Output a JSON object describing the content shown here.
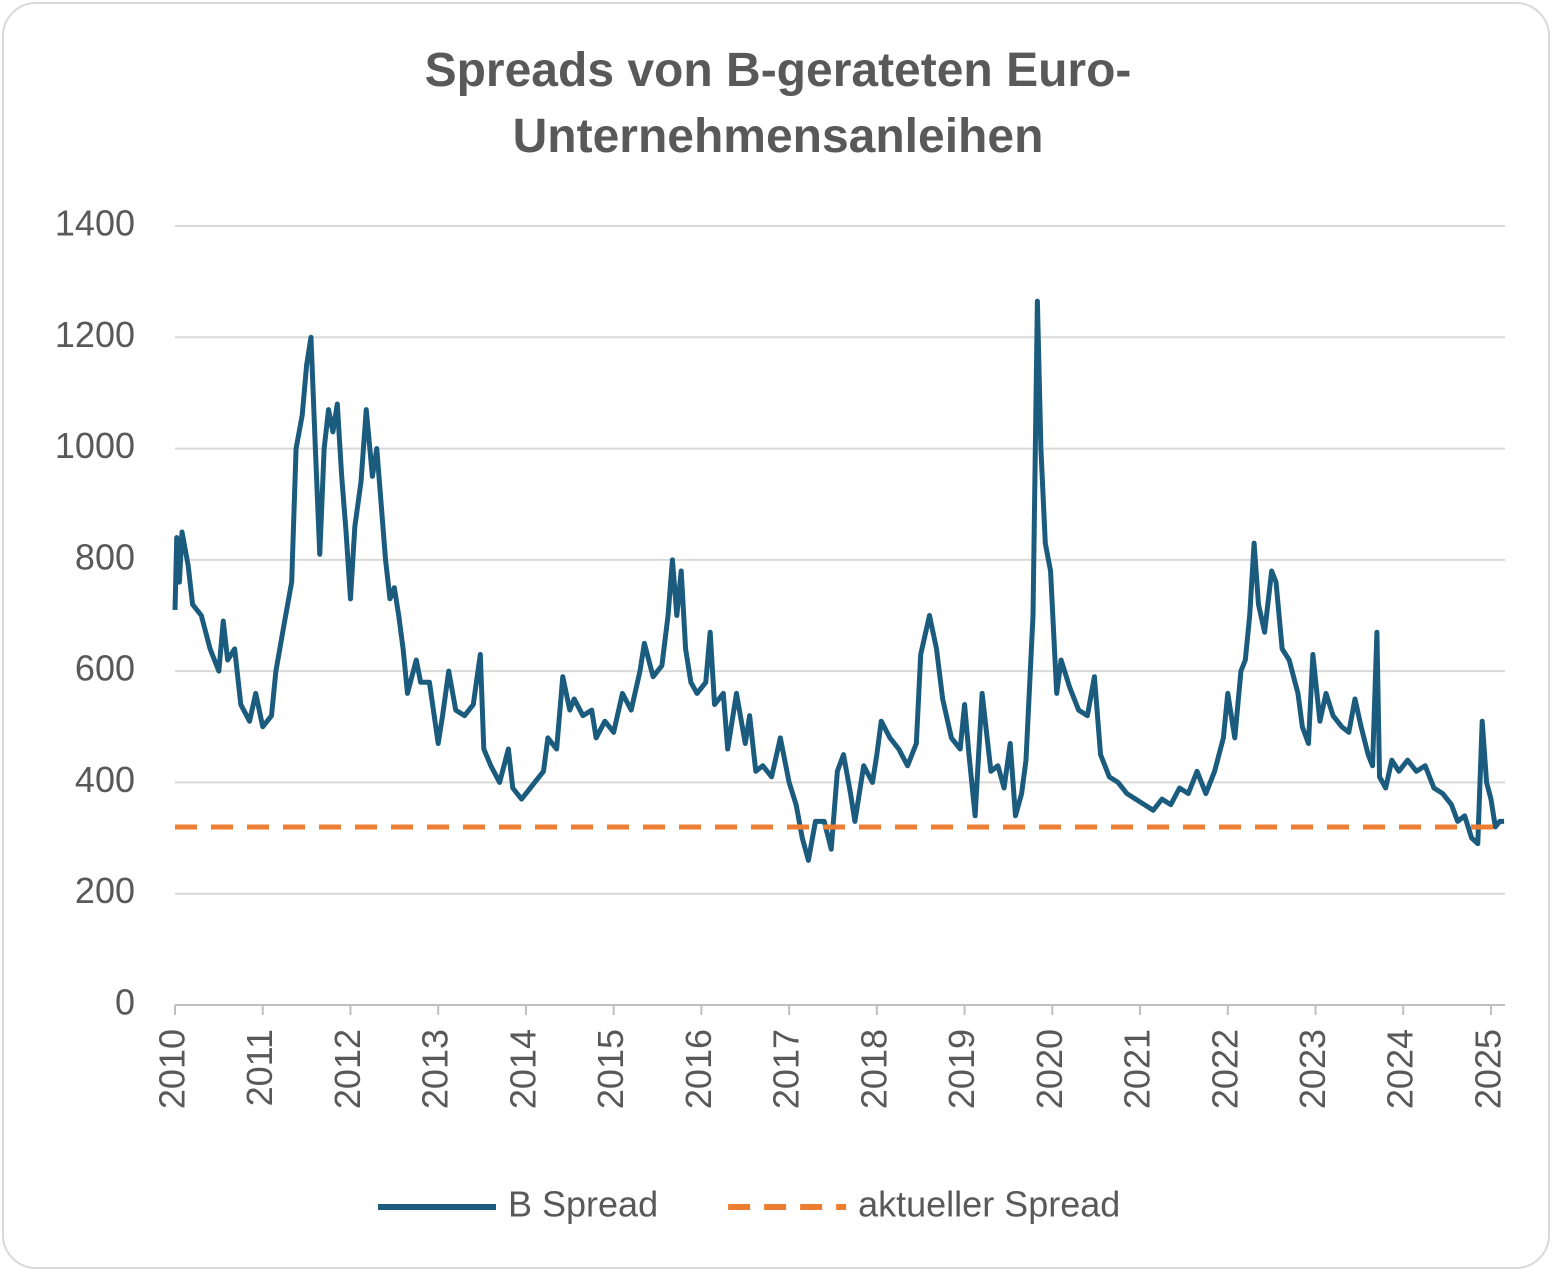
{
  "chart_data": {
    "type": "line",
    "title": "Spreads von B-gerateten Euro-Unternehmensanleihen",
    "xlim": [
      2010,
      2025.16
    ],
    "xticks": [
      2010,
      2011,
      2012,
      2013,
      2014,
      2015,
      2016,
      2017,
      2018,
      2019,
      2020,
      2021,
      2022,
      2023,
      2024,
      2025
    ],
    "ylim": [
      0,
      1400
    ],
    "yticks": [
      0,
      200,
      400,
      600,
      800,
      1000,
      1200,
      1400
    ],
    "grid": true,
    "legend": "bottom",
    "series": [
      {
        "name": "B Spread",
        "color": "#1b5c7e",
        "style": "solid",
        "x": [
          2010.0,
          2010.02,
          2010.05,
          2010.08,
          2010.15,
          2010.2,
          2010.3,
          2010.4,
          2010.5,
          2010.55,
          2010.6,
          2010.68,
          2010.75,
          2010.85,
          2010.92,
          2011.0,
          2011.1,
          2011.15,
          2011.25,
          2011.33,
          2011.38,
          2011.45,
          2011.5,
          2011.55,
          2011.6,
          2011.65,
          2011.7,
          2011.75,
          2011.8,
          2011.85,
          2011.9,
          2011.95,
          2012.0,
          2012.05,
          2012.12,
          2012.18,
          2012.25,
          2012.3,
          2012.35,
          2012.4,
          2012.45,
          2012.5,
          2012.55,
          2012.6,
          2012.65,
          2012.75,
          2012.8,
          2012.9,
          2013.0,
          2013.05,
          2013.12,
          2013.2,
          2013.3,
          2013.4,
          2013.48,
          2013.52,
          2013.6,
          2013.7,
          2013.8,
          2013.85,
          2013.95,
          2014.0,
          2014.1,
          2014.2,
          2014.25,
          2014.35,
          2014.42,
          2014.5,
          2014.55,
          2014.65,
          2014.75,
          2014.8,
          2014.9,
          2015.0,
          2015.1,
          2015.2,
          2015.3,
          2015.35,
          2015.45,
          2015.55,
          2015.62,
          2015.67,
          2015.72,
          2015.77,
          2015.82,
          2015.88,
          2015.95,
          2016.05,
          2016.1,
          2016.15,
          2016.25,
          2016.3,
          2016.4,
          2016.5,
          2016.55,
          2016.62,
          2016.7,
          2016.8,
          2016.9,
          2017.0,
          2017.08,
          2017.15,
          2017.22,
          2017.3,
          2017.4,
          2017.48,
          2017.55,
          2017.62,
          2017.7,
          2017.75,
          2017.85,
          2017.95,
          2018.0,
          2018.05,
          2018.15,
          2018.25,
          2018.35,
          2018.45,
          2018.5,
          2018.6,
          2018.68,
          2018.75,
          2018.85,
          2018.95,
          2019.0,
          2019.05,
          2019.12,
          2019.2,
          2019.3,
          2019.38,
          2019.45,
          2019.52,
          2019.58,
          2019.65,
          2019.7,
          2019.78,
          2019.83,
          2019.87,
          2019.92,
          2019.98,
          2020.05,
          2020.1,
          2020.2,
          2020.3,
          2020.4,
          2020.48,
          2020.55,
          2020.65,
          2020.75,
          2020.85,
          2020.95,
          2021.05,
          2021.15,
          2021.25,
          2021.35,
          2021.45,
          2021.55,
          2021.65,
          2021.75,
          2021.85,
          2021.95,
          2022.0,
          2022.08,
          2022.15,
          2022.2,
          2022.25,
          2022.3,
          2022.35,
          2022.42,
          2022.5,
          2022.55,
          2022.62,
          2022.7,
          2022.8,
          2022.85,
          2022.92,
          2022.97,
          2023.05,
          2023.12,
          2023.2,
          2023.3,
          2023.38,
          2023.45,
          2023.52,
          2023.6,
          2023.65,
          2023.7,
          2023.73,
          2023.8,
          2023.87,
          2023.95,
          2024.05,
          2024.15,
          2024.25,
          2024.35,
          2024.45,
          2024.55,
          2024.62,
          2024.7,
          2024.78,
          2024.85,
          2024.9,
          2024.95,
          2025.0,
          2025.05,
          2025.1,
          2025.15
        ],
        "values": [
          710,
          840,
          760,
          850,
          790,
          720,
          700,
          640,
          600,
          690,
          620,
          640,
          540,
          510,
          560,
          500,
          520,
          600,
          690,
          760,
          1000,
          1060,
          1150,
          1200,
          1000,
          810,
          1000,
          1070,
          1030,
          1080,
          950,
          850,
          730,
          860,
          940,
          1070,
          950,
          1000,
          900,
          800,
          730,
          750,
          700,
          640,
          560,
          620,
          580,
          580,
          470,
          520,
          600,
          530,
          520,
          540,
          630,
          460,
          430,
          400,
          460,
          390,
          370,
          380,
          400,
          420,
          480,
          460,
          590,
          530,
          550,
          520,
          530,
          480,
          510,
          490,
          560,
          530,
          600,
          650,
          590,
          610,
          700,
          800,
          700,
          780,
          640,
          580,
          560,
          580,
          670,
          540,
          560,
          460,
          560,
          470,
          520,
          420,
          430,
          410,
          480,
          400,
          360,
          300,
          260,
          330,
          330,
          280,
          420,
          450,
          380,
          330,
          430,
          400,
          450,
          510,
          480,
          460,
          430,
          470,
          630,
          700,
          640,
          550,
          480,
          460,
          540,
          450,
          340,
          560,
          420,
          430,
          390,
          470,
          340,
          380,
          440,
          700,
          1265,
          1000,
          830,
          780,
          560,
          620,
          570,
          530,
          520,
          590,
          450,
          410,
          400,
          380,
          370,
          360,
          350,
          370,
          360,
          390,
          380,
          420,
          380,
          420,
          480,
          560,
          480,
          600,
          620,
          700,
          830,
          720,
          670,
          780,
          760,
          640,
          620,
          560,
          500,
          470,
          630,
          510,
          560,
          520,
          500,
          490,
          550,
          500,
          450,
          430,
          670,
          410,
          390,
          440,
          420,
          440,
          420,
          430,
          390,
          380,
          360,
          330,
          340,
          300,
          290,
          510,
          400,
          370,
          320,
          330,
          330
        ]
      },
      {
        "name": "aktueller Spread",
        "color": "#ed7d31",
        "style": "dashed",
        "x": [
          2010,
          2025.16
        ],
        "values": [
          320,
          320
        ]
      }
    ]
  }
}
